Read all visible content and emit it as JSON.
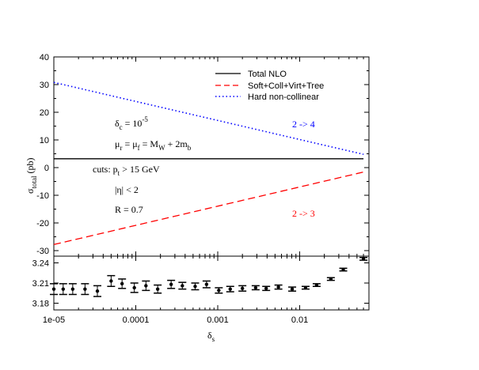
{
  "chart_data": [
    {
      "type": "line",
      "x_scale": "log",
      "xlim": [
        1e-05,
        0.07
      ],
      "ylim": [
        -32,
        40
      ],
      "ylabel": {
        "base": "σ",
        "sub": "total",
        "tail": " (pb)"
      },
      "y_ticks": [
        "40",
        "30",
        "20",
        "10",
        "0",
        "-10",
        "-20",
        "-30"
      ],
      "y_tick_values": [
        40,
        30,
        20,
        10,
        0,
        -10,
        -20,
        -30
      ],
      "legend_position": "top-right",
      "series": [
        {
          "name": "Total NLO",
          "color": "#000000",
          "dash": "solid",
          "x": [
            1e-05,
            0.06
          ],
          "y": [
            3.2,
            3.2
          ]
        },
        {
          "name": "Soft+Coll+Virt+Tree",
          "color": "#ff0000",
          "dash": "dashed",
          "x": [
            1e-05,
            0.06
          ],
          "y": [
            -27.8,
            -1.6
          ]
        },
        {
          "name": "Hard non-collinear",
          "color": "#0000ff",
          "dash": "dotted",
          "x": [
            1e-05,
            0.06
          ],
          "y": [
            30.8,
            4.8
          ]
        }
      ],
      "annotations": {
        "delta_c": {
          "main": "δ",
          "sub": "c",
          "mid": " = 10",
          "sup": "-5"
        },
        "mu": {
          "t1": "μ",
          "s1": "r",
          "t2": " = μ",
          "s2": "f",
          "t3": " = M",
          "s3": "W",
          "t4": " + 2m",
          "s4": "b"
        },
        "cuts": {
          "t1": "cuts: p",
          "s1": "t",
          "t2": " > 15 GeV"
        },
        "eta": "|η| < 2",
        "R": "R = 0.7",
        "label_24": "2 -> 4",
        "label_23": "2 -> 3"
      }
    },
    {
      "type": "scatter",
      "x_scale": "log",
      "ylim": [
        3.17,
        3.25
      ],
      "y_ticks": [
        "3.24",
        "3.21",
        "3.18"
      ],
      "y_tick_values": [
        3.24,
        3.21,
        3.18
      ],
      "x_ticks": [
        "1e-05",
        "0.0001",
        "0.001",
        "0.01"
      ],
      "x_tick_values": [
        1e-05,
        0.0001,
        0.001,
        0.01
      ],
      "xlabel": {
        "base": "δ",
        "sub": "s"
      },
      "points": [
        {
          "x": 1e-05,
          "y": 3.201,
          "err": 0.008
        },
        {
          "x": 1.3e-05,
          "y": 3.201,
          "err": 0.008
        },
        {
          "x": 1.7e-05,
          "y": 3.201,
          "err": 0.008
        },
        {
          "x": 2.4e-05,
          "y": 3.201,
          "err": 0.008
        },
        {
          "x": 3.4e-05,
          "y": 3.198,
          "err": 0.008
        },
        {
          "x": 5e-05,
          "y": 3.213,
          "err": 0.008
        },
        {
          "x": 6.8e-05,
          "y": 3.209,
          "err": 0.007
        },
        {
          "x": 9.6e-05,
          "y": 3.203,
          "err": 0.007
        },
        {
          "x": 0.000133,
          "y": 3.206,
          "err": 0.007
        },
        {
          "x": 0.000185,
          "y": 3.201,
          "err": 0.006
        },
        {
          "x": 0.00027,
          "y": 3.208,
          "err": 0.006
        },
        {
          "x": 0.00037,
          "y": 3.206,
          "err": 0.005
        },
        {
          "x": 0.00053,
          "y": 3.205,
          "err": 0.005
        },
        {
          "x": 0.00073,
          "y": 3.208,
          "err": 0.005
        },
        {
          "x": 0.00103,
          "y": 3.199,
          "err": 0.004
        },
        {
          "x": 0.00142,
          "y": 3.201,
          "err": 0.004
        },
        {
          "x": 0.002,
          "y": 3.202,
          "err": 0.004
        },
        {
          "x": 0.0029,
          "y": 3.203,
          "err": 0.003
        },
        {
          "x": 0.0039,
          "y": 3.202,
          "err": 0.003
        },
        {
          "x": 0.0055,
          "y": 3.204,
          "err": 0.003
        },
        {
          "x": 0.0081,
          "y": 3.201,
          "err": 0.003
        },
        {
          "x": 0.0118,
          "y": 3.203,
          "err": 0.002
        },
        {
          "x": 0.0161,
          "y": 3.207,
          "err": 0.002
        },
        {
          "x": 0.024,
          "y": 3.216,
          "err": 0.002
        },
        {
          "x": 0.034,
          "y": 3.23,
          "err": 0.002
        },
        {
          "x": 0.06,
          "y": 3.246,
          "err": 0.002
        }
      ]
    }
  ]
}
